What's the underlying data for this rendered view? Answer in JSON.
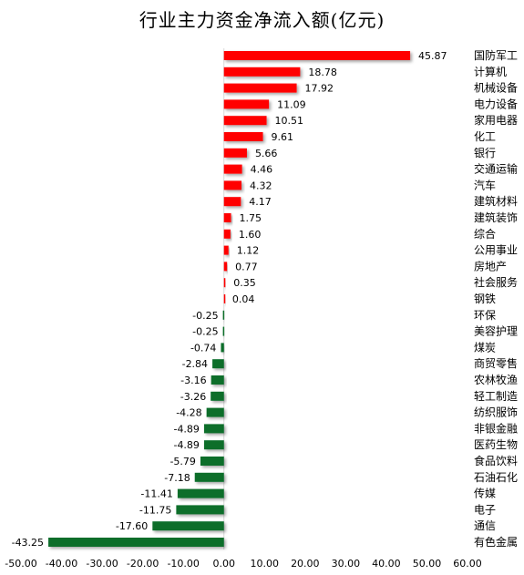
{
  "chart_data": {
    "type": "bar",
    "orientation": "horizontal",
    "title": "行业主力资金净流入额(亿元)",
    "xlim": [
      -50,
      60
    ],
    "xticks": [
      "-50.00",
      "-40.00",
      "-30.00",
      "-20.00",
      "-10.00",
      "0.00",
      "10.00",
      "20.00",
      "30.00",
      "40.00",
      "50.00",
      "60.00"
    ],
    "grid": false,
    "legend": "none",
    "colors": {
      "positive": "#ff0000",
      "negative": "#0a6e2c"
    },
    "categories": [
      "国防军工",
      "计算机",
      "机械设备",
      "电力设备",
      "家用电器",
      "化工",
      "银行",
      "交通运输",
      "汽车",
      "建筑材料",
      "建筑装饰",
      "综合",
      "公用事业",
      "房地产",
      "社会服务",
      "钢铁",
      "环保",
      "美容护理",
      "煤炭",
      "商贸零售",
      "农林牧渔",
      "轻工制造",
      "纺织服饰",
      "非银金融",
      "医药生物",
      "食品饮料",
      "石油石化",
      "传媒",
      "电子",
      "通信",
      "有色金属"
    ],
    "values": [
      45.87,
      18.78,
      17.92,
      11.09,
      10.51,
      9.61,
      5.66,
      4.46,
      4.32,
      4.17,
      1.75,
      1.6,
      1.12,
      0.77,
      0.35,
      0.04,
      -0.25,
      -0.25,
      -0.74,
      -2.84,
      -3.16,
      -3.26,
      -4.28,
      -4.89,
      -4.89,
      -5.79,
      -7.18,
      -11.41,
      -11.75,
      -17.6,
      -43.25
    ],
    "value_labels": [
      "45.87",
      "18.78",
      "17.92",
      "11.09",
      "10.51",
      "9.61",
      "5.66",
      "4.46",
      "4.32",
      "4.17",
      "1.75",
      "1.60",
      "1.12",
      "0.77",
      "0.35",
      "0.04",
      "-0.25",
      "-0.25",
      "-0.74",
      "-2.84",
      "-3.16",
      "-3.26",
      "-4.28",
      "-4.89",
      "-4.89",
      "-5.79",
      "-7.18",
      "-11.41",
      "-11.75",
      "-17.60",
      "-43.25"
    ]
  }
}
